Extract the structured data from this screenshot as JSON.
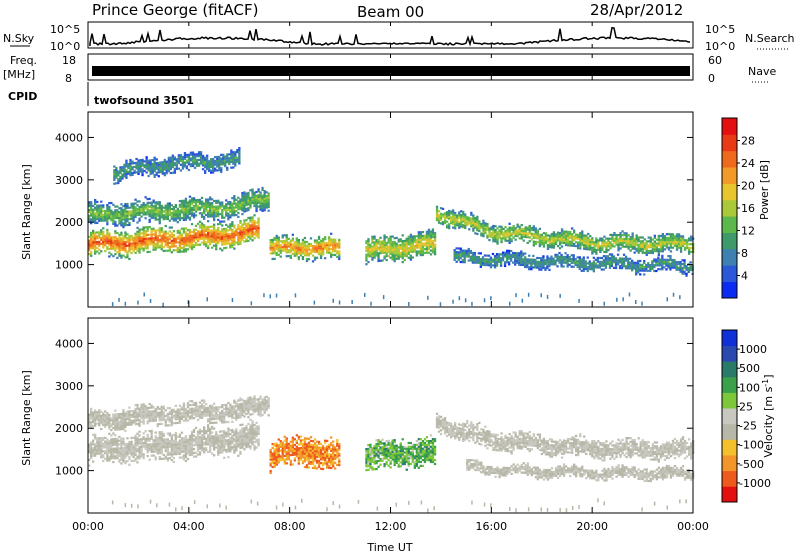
{
  "header": {
    "station": "Prince George (fitACF)",
    "beam": "Beam 00",
    "date": "28/Apr/2012"
  },
  "strip": {
    "nsky_label": "N.Sky",
    "nsky_ticks": [
      "10^5",
      "10^0"
    ],
    "nsearch_label": "N.Search",
    "nsearch_ticks": [
      "10^5",
      "10^0"
    ],
    "freq_label": "Freq.",
    "freq_unit": "[MHz]",
    "freq_ticks": [
      "18",
      "8"
    ],
    "nave_label": "Nave",
    "nave_ticks": [
      "60",
      "0"
    ],
    "cpid_label": "CPID",
    "cpid_value": "twofsound 3501"
  },
  "chart_data": [
    {
      "type": "heatmap",
      "name": "power",
      "ylabel": "Slant Range [km]",
      "ylim": [
        0,
        4600
      ],
      "yticks": [
        "1000",
        "2000",
        "3000",
        "4000"
      ],
      "xlim": [
        0,
        24
      ],
      "colorbar": {
        "label": "Power [dB]",
        "ticks": [
          "4",
          "8",
          "12",
          "16",
          "20",
          "24",
          "28"
        ],
        "range": [
          0,
          32
        ],
        "colors": [
          "#0a2bf0",
          "#2a58d8",
          "#3f80b2",
          "#3f9a6a",
          "#5cb84a",
          "#a9c83a",
          "#e8c52e",
          "#f19a28",
          "#f06a1e",
          "#e93a16",
          "#e40f10"
        ]
      },
      "bands": [
        {
          "t": [
            0.0,
            3.0,
            5.0,
            6.8
          ],
          "r": [
            1450,
            1570,
            1650,
            1800
          ],
          "w": 350,
          "level": 0.85
        },
        {
          "t": [
            0.0,
            3.0,
            6.0,
            7.2
          ],
          "r": [
            2150,
            2250,
            2350,
            2600
          ],
          "w": 300,
          "level": 0.45
        },
        {
          "t": [
            1.0,
            3.0,
            6.0
          ],
          "r": [
            3150,
            3350,
            3450
          ],
          "w": 250,
          "level": 0.3
        },
        {
          "t": [
            7.2,
            8.5,
            10.0
          ],
          "r": [
            1350,
            1400,
            1350
          ],
          "w": 300,
          "level": 0.75
        },
        {
          "t": [
            11.0,
            12.5,
            13.8
          ],
          "r": [
            1300,
            1400,
            1450
          ],
          "w": 350,
          "level": 0.6
        },
        {
          "t": [
            13.8,
            16.0,
            20.0,
            24.0
          ],
          "r": [
            2200,
            1750,
            1500,
            1450
          ],
          "w": 250,
          "level": 0.55
        },
        {
          "t": [
            14.5,
            18.0,
            24.0
          ],
          "r": [
            1150,
            1050,
            950
          ],
          "w": 200,
          "level": 0.3
        }
      ]
    },
    {
      "type": "heatmap",
      "name": "velocity",
      "ylabel": "Slant Range [km]",
      "ylim": [
        0,
        4600
      ],
      "yticks": [
        "1000",
        "2000",
        "3000",
        "4000"
      ],
      "xlabel": "Time UT",
      "xlim": [
        0,
        24
      ],
      "xticks": [
        "00:00",
        "04:00",
        "08:00",
        "12:00",
        "16:00",
        "20:00",
        "00:00"
      ],
      "colorbar": {
        "label": "Velocity [m s^-1]",
        "ticks": [
          "-1000",
          "-500",
          "-100",
          "-25",
          "25",
          "100",
          "500",
          "1000"
        ],
        "colors": [
          "#e40f10",
          "#ee5a1e",
          "#f2952a",
          "#f4c02e",
          "#b8b8a8",
          "#c8c8c0",
          "#7cc83a",
          "#3aa04a",
          "#2a7a6a",
          "#2a4ab0",
          "#1030d8"
        ]
      },
      "bands": [
        {
          "t": [
            0.0,
            3.0,
            5.0,
            6.8
          ],
          "r": [
            1450,
            1570,
            1650,
            1800
          ],
          "w": 380,
          "vel": "gray"
        },
        {
          "t": [
            0.0,
            3.0,
            6.0,
            7.2
          ],
          "r": [
            2150,
            2300,
            2400,
            2600
          ],
          "w": 280,
          "vel": "gray"
        },
        {
          "t": [
            7.2,
            8.5,
            10.0
          ],
          "r": [
            1350,
            1450,
            1350
          ],
          "w": 400,
          "vel": "orange"
        },
        {
          "t": [
            11.0,
            12.5,
            13.8
          ],
          "r": [
            1300,
            1400,
            1400
          ],
          "w": 380,
          "vel": "green"
        },
        {
          "t": [
            13.8,
            16.0,
            20.0,
            24.0
          ],
          "r": [
            2100,
            1700,
            1500,
            1450
          ],
          "w": 260,
          "vel": "gray"
        },
        {
          "t": [
            15.0,
            18.0,
            24.0
          ],
          "r": [
            1050,
            950,
            900
          ],
          "w": 160,
          "vel": "gray"
        }
      ]
    }
  ]
}
